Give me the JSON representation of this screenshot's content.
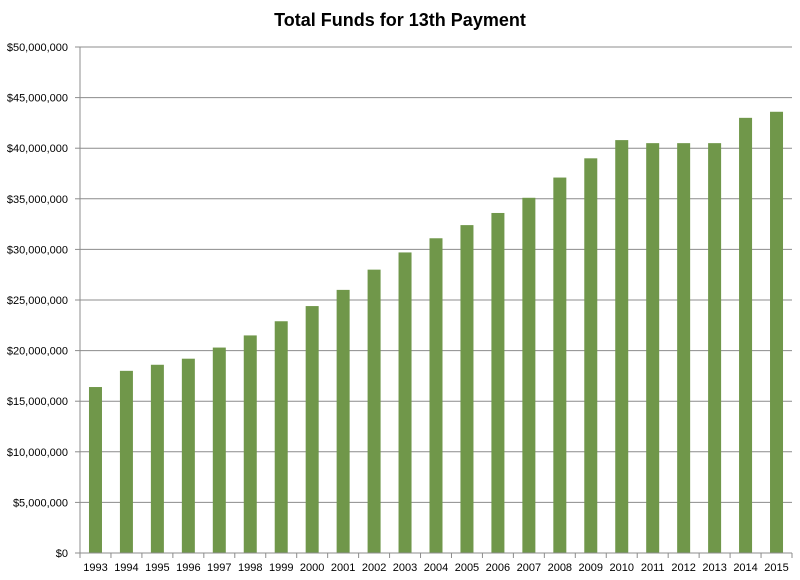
{
  "chart_data": {
    "type": "bar",
    "title": "Total Funds for 13th Payment",
    "xlabel": "",
    "ylabel": "",
    "ylim": [
      0,
      50000000
    ],
    "y_ticks": [
      0,
      5000000,
      10000000,
      15000000,
      20000000,
      25000000,
      30000000,
      35000000,
      40000000,
      45000000,
      50000000
    ],
    "y_tick_labels": [
      "$0",
      "$5,000,000",
      "$10,000,000",
      "$15,000,000",
      "$20,000,000",
      "$25,000,000",
      "$30,000,000",
      "$35,000,000",
      "$40,000,000",
      "$45,000,000",
      "$50,000,000"
    ],
    "grid": true,
    "legend": "none",
    "bar_color": "#70974a",
    "categories": [
      "1993",
      "1994",
      "1995",
      "1996",
      "1997",
      "1998",
      "1999",
      "2000",
      "2001",
      "2002",
      "2003",
      "2004",
      "2005",
      "2006",
      "2007",
      "2008",
      "2009",
      "2010",
      "2011",
      "2012",
      "2013",
      "2014",
      "2015"
    ],
    "values": [
      16400000,
      18000000,
      18600000,
      19200000,
      20300000,
      21500000,
      22900000,
      24400000,
      26000000,
      28000000,
      29700000,
      31100000,
      32400000,
      33600000,
      35100000,
      37100000,
      39000000,
      40800000,
      40500000,
      40500000,
      40500000,
      43000000,
      43600000
    ]
  }
}
